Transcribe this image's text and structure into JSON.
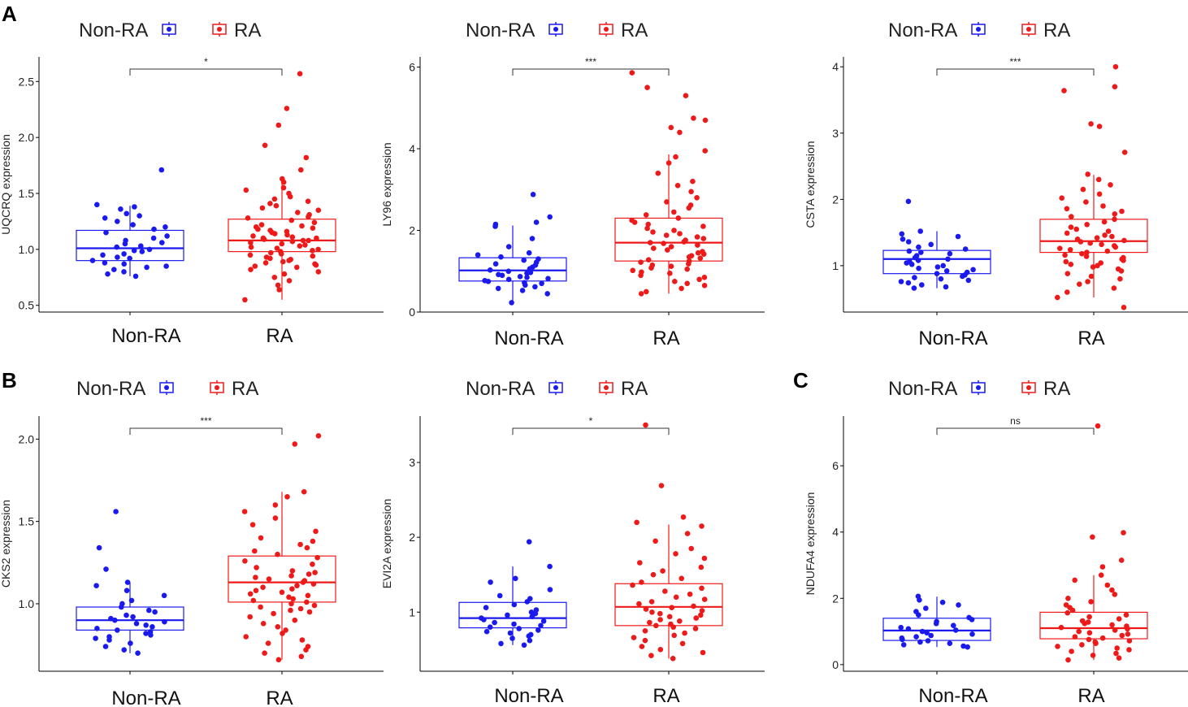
{
  "colors": {
    "non_ra": "#1a1aee",
    "ra": "#ee1a1a",
    "axis": "#000000",
    "bracket": "#333333"
  },
  "panel_letters": {
    "A": "A",
    "B": "B",
    "C": "C"
  },
  "chart_data": [
    {
      "type": "box",
      "title": "",
      "ylabel": "UQCRQ expression",
      "categories": [
        "Non-RA",
        "RA"
      ],
      "legend": [
        "Non-RA",
        "RA"
      ],
      "ylim": [
        0.44,
        2.72
      ],
      "yticks": [
        0.5,
        1.0,
        1.5,
        2.0,
        2.5
      ],
      "ytick_labels": [
        "0.5",
        "1.0",
        "1.5",
        "2.0",
        "2.5"
      ],
      "significance": "*",
      "boxes": [
        {
          "name": "Non-RA",
          "q1": 0.9,
          "median": 1.01,
          "q3": 1.17,
          "whisker_low": 0.76,
          "whisker_high": 1.39
        },
        {
          "name": "RA",
          "q1": 0.98,
          "median": 1.08,
          "q3": 1.27,
          "whisker_low": 0.55,
          "whisker_high": 1.65
        }
      ],
      "points": [
        [
          1.71,
          1.4,
          1.38,
          1.36,
          1.32,
          1.3,
          1.28,
          1.25,
          1.22,
          1.2,
          1.18,
          1.15,
          1.12,
          1.1,
          1.08,
          1.06,
          1.05,
          1.03,
          1.02,
          1.0,
          0.99,
          0.98,
          0.96,
          0.95,
          0.93,
          0.92,
          0.9,
          0.88,
          0.87,
          0.85,
          0.84,
          0.82,
          0.8,
          0.78,
          0.76
        ],
        [
          2.57,
          2.26,
          2.11,
          1.93,
          1.82,
          1.71,
          1.63,
          1.6,
          1.55,
          1.53,
          1.5,
          1.47,
          1.45,
          1.43,
          1.41,
          1.39,
          1.37,
          1.35,
          1.33,
          1.31,
          1.29,
          1.28,
          1.26,
          1.24,
          1.22,
          1.21,
          1.2,
          1.19,
          1.18,
          1.17,
          1.16,
          1.15,
          1.14,
          1.13,
          1.12,
          1.11,
          1.1,
          1.1,
          1.09,
          1.08,
          1.08,
          1.07,
          1.06,
          1.05,
          1.04,
          1.03,
          1.02,
          1.01,
          1.0,
          0.99,
          0.98,
          0.97,
          0.96,
          0.95,
          0.94,
          0.93,
          0.92,
          0.91,
          0.9,
          0.89,
          0.88,
          0.87,
          0.86,
          0.85,
          0.84,
          0.82,
          0.8,
          0.78,
          0.75,
          0.72,
          0.68,
          0.64,
          0.55
        ]
      ]
    },
    {
      "type": "box",
      "title": "",
      "ylabel": "LY96 expression",
      "categories": [
        "Non-RA",
        "RA"
      ],
      "legend": [
        "Non-RA",
        "RA"
      ],
      "ylim": [
        0,
        6.25
      ],
      "yticks": [
        0,
        2,
        4,
        6
      ],
      "ytick_labels": [
        "0",
        "2",
        "4",
        "6"
      ],
      "significance": "***",
      "boxes": [
        {
          "name": "Non-RA",
          "q1": 0.76,
          "median": 1.02,
          "q3": 1.33,
          "whisker_low": 0.23,
          "whisker_high": 2.12
        },
        {
          "name": "RA",
          "q1": 1.25,
          "median": 1.7,
          "q3": 2.3,
          "whisker_low": 0.45,
          "whisker_high": 3.86
        }
      ],
      "points": [
        [
          2.88,
          2.33,
          2.2,
          2.15,
          2.1,
          1.8,
          1.6,
          1.45,
          1.4,
          1.35,
          1.3,
          1.27,
          1.22,
          1.18,
          1.15,
          1.1,
          1.06,
          1.03,
          1.0,
          0.97,
          0.95,
          0.92,
          0.9,
          0.87,
          0.85,
          0.82,
          0.8,
          0.77,
          0.75,
          0.72,
          0.7,
          0.66,
          0.62,
          0.58,
          0.53,
          0.45,
          0.23
        ],
        [
          5.86,
          5.5,
          5.3,
          4.75,
          4.7,
          4.52,
          4.4,
          3.95,
          3.8,
          3.65,
          3.4,
          3.2,
          3.1,
          2.95,
          2.8,
          2.7,
          2.62,
          2.55,
          2.45,
          2.38,
          2.3,
          2.25,
          2.2,
          2.15,
          2.1,
          2.05,
          2.0,
          1.96,
          1.92,
          1.88,
          1.84,
          1.8,
          1.76,
          1.72,
          1.7,
          1.68,
          1.64,
          1.6,
          1.56,
          1.52,
          1.48,
          1.45,
          1.42,
          1.38,
          1.35,
          1.32,
          1.28,
          1.25,
          1.22,
          1.18,
          1.15,
          1.12,
          1.08,
          1.05,
          1.02,
          0.98,
          0.95,
          0.9,
          0.85,
          0.8,
          0.75,
          0.7,
          0.65,
          0.58,
          0.5,
          0.45
        ]
      ]
    },
    {
      "type": "box",
      "title": "",
      "ylabel": "CSTA expression",
      "categories": [
        "Non-RA",
        "RA"
      ],
      "legend": [
        "Non-RA",
        "RA"
      ],
      "ylim": [
        0.3,
        4.15
      ],
      "yticks": [
        1,
        2,
        3,
        4
      ],
      "ytick_labels": [
        "1",
        "2",
        "3",
        "4"
      ],
      "significance": "***",
      "boxes": [
        {
          "name": "Non-RA",
          "q1": 0.88,
          "median": 1.1,
          "q3": 1.23,
          "whisker_low": 0.66,
          "whisker_high": 1.52
        },
        {
          "name": "RA",
          "q1": 1.2,
          "median": 1.37,
          "q3": 1.7,
          "whisker_low": 0.52,
          "whisker_high": 2.37
        }
      ],
      "points": [
        [
          1.97,
          1.52,
          1.48,
          1.44,
          1.4,
          1.36,
          1.32,
          1.28,
          1.25,
          1.22,
          1.2,
          1.18,
          1.15,
          1.12,
          1.1,
          1.08,
          1.06,
          1.04,
          1.02,
          1.0,
          0.98,
          0.96,
          0.94,
          0.92,
          0.9,
          0.88,
          0.86,
          0.84,
          0.82,
          0.8,
          0.78,
          0.76,
          0.74,
          0.71,
          0.68,
          0.66
        ],
        [
          4.0,
          3.7,
          3.64,
          3.14,
          3.1,
          2.71,
          2.38,
          2.3,
          2.22,
          2.15,
          2.08,
          2.02,
          1.96,
          1.9,
          1.86,
          1.82,
          1.78,
          1.74,
          1.7,
          1.66,
          1.62,
          1.58,
          1.55,
          1.52,
          1.49,
          1.46,
          1.44,
          1.42,
          1.4,
          1.38,
          1.36,
          1.34,
          1.32,
          1.3,
          1.28,
          1.26,
          1.24,
          1.22,
          1.2,
          1.18,
          1.16,
          1.14,
          1.12,
          1.1,
          1.08,
          1.06,
          1.04,
          1.02,
          1.0,
          0.98,
          0.95,
          0.92,
          0.88,
          0.84,
          0.8,
          0.76,
          0.72,
          0.66,
          0.6,
          0.52,
          0.37
        ]
      ]
    },
    {
      "type": "box",
      "title": "",
      "ylabel": "CKS2 expression",
      "categories": [
        "Non-RA",
        "RA"
      ],
      "legend": [
        "Non-RA",
        "RA"
      ],
      "ylim": [
        0.59,
        2.14
      ],
      "yticks": [
        1.0,
        1.5,
        2.0
      ],
      "ytick_labels": [
        "1.0",
        "1.5",
        "2.0"
      ],
      "significance": "***",
      "boxes": [
        {
          "name": "Non-RA",
          "q1": 0.84,
          "median": 0.9,
          "q3": 0.98,
          "whisker_low": 0.7,
          "whisker_high": 1.13
        },
        {
          "name": "RA",
          "q1": 1.01,
          "median": 1.13,
          "q3": 1.29,
          "whisker_low": 0.66,
          "whisker_high": 1.68
        }
      ],
      "points": [
        [
          1.56,
          1.34,
          1.21,
          1.13,
          1.11,
          1.08,
          1.05,
          1.02,
          1.0,
          0.98,
          0.96,
          0.95,
          0.93,
          0.92,
          0.91,
          0.9,
          0.89,
          0.88,
          0.87,
          0.86,
          0.85,
          0.84,
          0.83,
          0.82,
          0.81,
          0.8,
          0.79,
          0.78,
          0.76,
          0.74,
          0.72,
          0.7
        ],
        [
          2.02,
          1.97,
          1.68,
          1.65,
          1.6,
          1.56,
          1.52,
          1.48,
          1.44,
          1.4,
          1.38,
          1.36,
          1.34,
          1.32,
          1.3,
          1.28,
          1.26,
          1.24,
          1.22,
          1.2,
          1.19,
          1.18,
          1.17,
          1.16,
          1.15,
          1.14,
          1.13,
          1.12,
          1.11,
          1.1,
          1.09,
          1.08,
          1.07,
          1.06,
          1.05,
          1.04,
          1.03,
          1.02,
          1.01,
          1.0,
          0.99,
          0.98,
          0.97,
          0.96,
          0.95,
          0.94,
          0.92,
          0.9,
          0.88,
          0.86,
          0.84,
          0.82,
          0.8,
          0.78,
          0.76,
          0.74,
          0.72,
          0.7,
          0.68,
          0.66
        ]
      ]
    },
    {
      "type": "box",
      "title": "",
      "ylabel": "EVI2A expression",
      "categories": [
        "Non-RA",
        "RA"
      ],
      "legend": [
        "Non-RA",
        "RA"
      ],
      "ylim": [
        0.21,
        3.62
      ],
      "yticks": [
        1,
        2,
        3
      ],
      "ytick_labels": [
        "1",
        "2",
        "3"
      ],
      "significance": "*",
      "boxes": [
        {
          "name": "Non-RA",
          "q1": 0.79,
          "median": 0.92,
          "q3": 1.13,
          "whisker_low": 0.56,
          "whisker_high": 1.61
        },
        {
          "name": "RA",
          "q1": 0.82,
          "median": 1.07,
          "q3": 1.38,
          "whisker_low": 0.38,
          "whisker_high": 2.17
        }
      ],
      "points": [
        [
          1.94,
          1.61,
          1.45,
          1.4,
          1.3,
          1.22,
          1.18,
          1.14,
          1.1,
          1.06,
          1.03,
          1.0,
          0.98,
          0.96,
          0.94,
          0.92,
          0.9,
          0.88,
          0.86,
          0.84,
          0.82,
          0.8,
          0.78,
          0.76,
          0.74,
          0.72,
          0.7,
          0.68,
          0.65,
          0.62,
          0.58,
          0.56
        ],
        [
          3.5,
          2.69,
          2.27,
          2.2,
          2.15,
          2.05,
          1.95,
          1.85,
          1.78,
          1.72,
          1.66,
          1.6,
          1.55,
          1.5,
          1.45,
          1.4,
          1.36,
          1.32,
          1.28,
          1.24,
          1.2,
          1.17,
          1.14,
          1.11,
          1.08,
          1.06,
          1.04,
          1.02,
          1.0,
          0.98,
          0.96,
          0.94,
          0.92,
          0.9,
          0.88,
          0.86,
          0.84,
          0.82,
          0.8,
          0.78,
          0.75,
          0.72,
          0.69,
          0.66,
          0.62,
          0.58,
          0.54,
          0.5,
          0.46,
          0.42,
          0.38
        ]
      ]
    },
    {
      "type": "box",
      "title": "",
      "ylabel": "NDUFA4 expression",
      "categories": [
        "Non-RA",
        "RA"
      ],
      "legend": [
        "Non-RA",
        "RA"
      ],
      "ylim": [
        -0.2,
        7.5
      ],
      "yticks": [
        0,
        2,
        4,
        6
      ],
      "ytick_labels": [
        "0",
        "2",
        "4",
        "6"
      ],
      "significance": "ns",
      "boxes": [
        {
          "name": "Non-RA",
          "q1": 0.73,
          "median": 1.03,
          "q3": 1.4,
          "whisker_low": 0.53,
          "whisker_high": 2.05
        },
        {
          "name": "RA",
          "q1": 0.78,
          "median": 1.1,
          "q3": 1.58,
          "whisker_low": 0.14,
          "whisker_high": 2.7
        }
      ],
      "points": [
        [
          2.06,
          1.95,
          1.88,
          1.8,
          1.7,
          1.6,
          1.5,
          1.42,
          1.36,
          1.3,
          1.24,
          1.18,
          1.12,
          1.08,
          1.04,
          1.0,
          0.96,
          0.92,
          0.88,
          0.84,
          0.8,
          0.76,
          0.72,
          0.68,
          0.64,
          0.6,
          0.56,
          0.53
        ],
        [
          7.2,
          3.98,
          3.85,
          3.15,
          2.95,
          2.7,
          2.55,
          2.4,
          2.25,
          2.12,
          2.0,
          1.9,
          1.8,
          1.72,
          1.64,
          1.56,
          1.5,
          1.44,
          1.38,
          1.32,
          1.28,
          1.24,
          1.2,
          1.16,
          1.12,
          1.08,
          1.04,
          1.0,
          0.96,
          0.92,
          0.88,
          0.84,
          0.8,
          0.76,
          0.72,
          0.68,
          0.64,
          0.6,
          0.55,
          0.5,
          0.45,
          0.4,
          0.34,
          0.28,
          0.2,
          0.14
        ]
      ]
    }
  ]
}
